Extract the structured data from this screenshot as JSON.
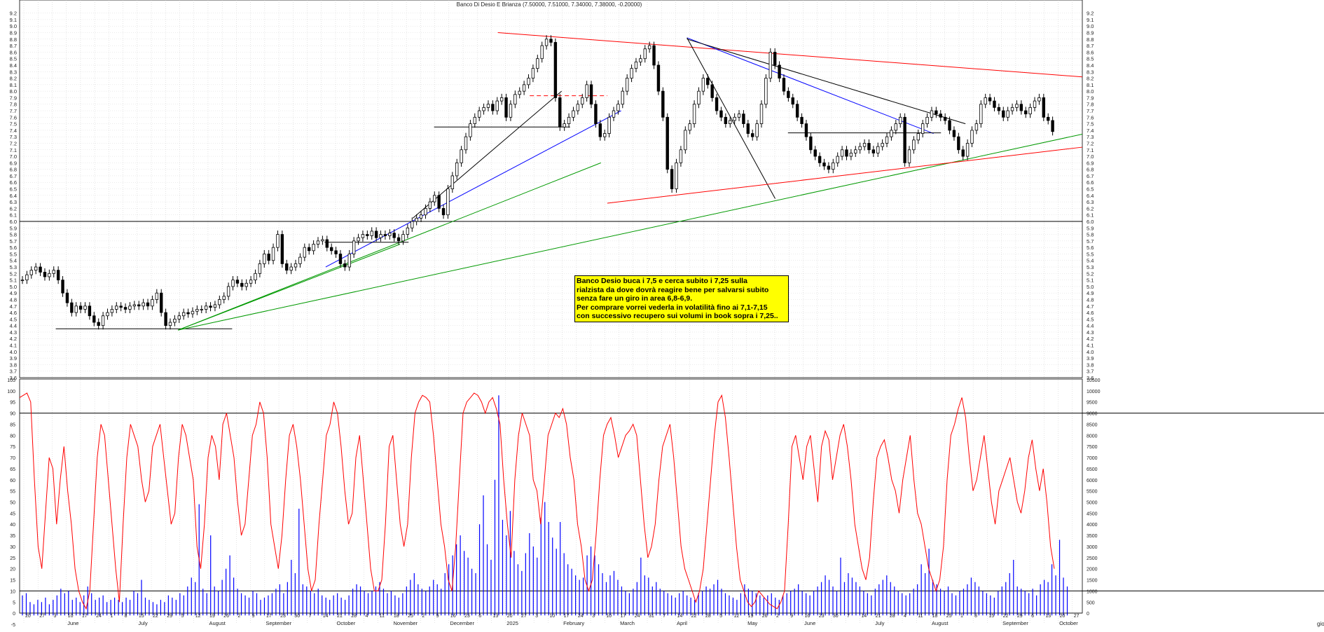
{
  "chart_data": [
    {
      "type": "candlestick",
      "title": "Banco Di Desio E Brianza (7.50000, 7.51000, 7.34000, 7.38000, -0.20000)",
      "y_tick_labels": [
        "3.6",
        "3.7",
        "3.8",
        "3.9",
        "4.0",
        "4.1",
        "4.2",
        "4.3",
        "4.4",
        "4.5",
        "4.6",
        "4.7",
        "4.8",
        "4.9",
        "5.0",
        "5.1",
        "5.2",
        "5.3",
        "5.4",
        "5.5",
        "5.6",
        "5.7",
        "5.8",
        "5.9",
        "6.0",
        "6.1",
        "6.2",
        "6.3",
        "6.4",
        "6.5",
        "6.6",
        "6.7",
        "6.8",
        "6.9",
        "7.0",
        "7.1",
        "7.2",
        "7.3",
        "7.4",
        "7.5",
        "7.6",
        "7.7",
        "7.8",
        "7.9",
        "8.0",
        "8.1",
        "8.2",
        "8.3",
        "8.4",
        "8.5",
        "8.6",
        "8.7",
        "8.8",
        "8.9",
        "9.0",
        "9.1",
        "9.2"
      ],
      "ylim": [
        3.6,
        9.25
      ],
      "grid": true,
      "x_day_labels": [
        "20",
        "27",
        "3",
        "10",
        "17",
        "24",
        "1",
        "8",
        "15",
        "22",
        "29",
        "5",
        "12",
        "19",
        "26",
        "2",
        "9",
        "17",
        "23",
        "30",
        "7",
        "14",
        "21",
        "28",
        "4",
        "11",
        "18",
        "25",
        "2",
        "9",
        "16",
        "23",
        "6",
        "13",
        "20",
        "27",
        "3",
        "10",
        "17",
        "24",
        "3",
        "10",
        "17",
        "24",
        "31",
        "7",
        "14",
        "22",
        "28",
        "5",
        "12",
        "19",
        "26",
        "2",
        "9",
        "16",
        "23",
        "30",
        "7",
        "14",
        "21",
        "28",
        "4",
        "11",
        "18",
        "25",
        "1",
        "8",
        "15",
        "22",
        "29",
        "6",
        "13",
        "20",
        "27"
      ],
      "x_month_labels": [
        "June",
        "July",
        "August",
        "September",
        "October",
        "November",
        "December",
        "2025",
        "February",
        "March",
        "April",
        "May",
        "June",
        "July",
        "August",
        "September",
        "October"
      ],
      "trendlines": [
        {
          "color": "#000000",
          "points": [
            [
              0,
              6.0
            ],
            [
              1,
              6.0
            ]
          ]
        },
        {
          "color": "#000000",
          "points": [
            [
              0.034,
              4.35
            ],
            [
              0.2,
              4.35
            ]
          ]
        },
        {
          "color": "#009900",
          "points": [
            [
              0.149,
              4.33
            ],
            [
              0.358,
              5.65
            ]
          ]
        },
        {
          "color": "#009900",
          "points": [
            [
              0.149,
              4.33
            ],
            [
              0.547,
              6.9
            ]
          ]
        },
        {
          "color": "#009900",
          "points": [
            [
              0.149,
              4.33
            ],
            [
              1.0,
              7.34
            ]
          ]
        },
        {
          "color": "#0000ff",
          "points": [
            [
              0.288,
              5.3
            ],
            [
              0.566,
              7.7
            ]
          ]
        },
        {
          "color": "#000000",
          "points": [
            [
              0.37,
              6.05
            ],
            [
              0.51,
              8.0
            ]
          ]
        },
        {
          "color": "#ff0000",
          "points": [
            [
              0.45,
              8.9
            ],
            [
              1.0,
              8.22
            ]
          ]
        },
        {
          "color": "#0000ff",
          "points": [
            [
              0.628,
              8.82
            ],
            [
              0.86,
              7.35
            ]
          ]
        },
        {
          "color": "#000000",
          "points": [
            [
              0.628,
              8.82
            ],
            [
              0.711,
              6.35
            ]
          ]
        },
        {
          "color": "#000000",
          "points": [
            [
              0.628,
              8.8
            ],
            [
              0.89,
              7.5
            ]
          ]
        },
        {
          "color": "#ff0000",
          "points": [
            [
              0.553,
              6.28
            ],
            [
              1.0,
              7.14
            ]
          ]
        },
        {
          "color": "#000000",
          "points": [
            [
              0.39,
              7.45
            ],
            [
              0.518,
              7.45
            ]
          ]
        },
        {
          "color": "#ff0000",
          "dash": true,
          "points": [
            [
              0.48,
              7.93
            ],
            [
              0.553,
              7.93
            ]
          ]
        },
        {
          "color": "#000000",
          "points": [
            [
              0.287,
              5.68
            ],
            [
              0.366,
              5.68
            ]
          ]
        },
        {
          "color": "#000000",
          "points": [
            [
              0.723,
              7.36
            ],
            [
              0.867,
              7.36
            ]
          ]
        }
      ],
      "price_series": {
        "description": "daily closing prices June 2024 - October 2025",
        "close": [
          5.1,
          5.18,
          5.25,
          5.3,
          5.22,
          5.15,
          5.2,
          5.25,
          5.1,
          4.9,
          4.75,
          4.6,
          4.7,
          4.65,
          4.7,
          4.55,
          4.45,
          4.4,
          4.55,
          4.6,
          4.65,
          4.7,
          4.68,
          4.65,
          4.7,
          4.72,
          4.7,
          4.75,
          4.7,
          4.8,
          4.9,
          4.6,
          4.4,
          4.45,
          4.5,
          4.55,
          4.6,
          4.58,
          4.62,
          4.65,
          4.65,
          4.7,
          4.68,
          4.72,
          4.8,
          4.85,
          5.0,
          5.1,
          5.05,
          5.0,
          5.05,
          5.1,
          5.2,
          5.35,
          5.5,
          5.4,
          5.6,
          5.8,
          5.35,
          5.25,
          5.3,
          5.35,
          5.45,
          5.6,
          5.55,
          5.65,
          5.7,
          5.72,
          5.6,
          5.55,
          5.5,
          5.35,
          5.3,
          5.5,
          5.7,
          5.75,
          5.8,
          5.78,
          5.85,
          5.75,
          5.8,
          5.78,
          5.82,
          5.75,
          5.7,
          5.8,
          5.9,
          6.0,
          6.05,
          6.1,
          6.2,
          6.3,
          6.4,
          6.2,
          6.1,
          6.5,
          6.7,
          6.9,
          7.1,
          7.3,
          7.5,
          7.6,
          7.7,
          7.75,
          7.8,
          7.7,
          7.85,
          7.9,
          7.6,
          7.8,
          7.95,
          8.0,
          8.1,
          8.2,
          8.35,
          8.5,
          8.7,
          8.8,
          8.75,
          7.9,
          7.45,
          7.5,
          7.6,
          7.7,
          7.8,
          7.9,
          8.1,
          7.8,
          7.5,
          7.3,
          7.35,
          7.6,
          7.7,
          7.8,
          8.0,
          8.2,
          8.35,
          8.45,
          8.5,
          8.65,
          8.7,
          8.4,
          8.0,
          7.6,
          6.8,
          6.5,
          6.9,
          7.1,
          7.4,
          7.5,
          7.8,
          8.0,
          8.2,
          8.1,
          7.9,
          7.7,
          7.6,
          7.5,
          7.55,
          7.6,
          7.65,
          7.5,
          7.35,
          7.3,
          7.5,
          7.8,
          8.2,
          8.6,
          8.4,
          8.2,
          8.0,
          7.9,
          7.8,
          7.6,
          7.5,
          7.3,
          7.1,
          7.0,
          6.9,
          6.85,
          6.8,
          6.9,
          7.0,
          7.1,
          7.0,
          7.05,
          7.1,
          7.15,
          7.2,
          7.1,
          7.05,
          7.15,
          7.2,
          7.3,
          7.4,
          7.5,
          7.6,
          6.9,
          7.1,
          7.25,
          7.35,
          7.5,
          7.6,
          7.7,
          7.65,
          7.6,
          7.55,
          7.4,
          7.3,
          7.1,
          7.0,
          7.2,
          7.4,
          7.5,
          7.8,
          7.9,
          7.85,
          7.75,
          7.7,
          7.6,
          7.7,
          7.75,
          7.8,
          7.7,
          7.65,
          7.75,
          7.85,
          7.9,
          7.6,
          7.55,
          7.38
        ]
      }
    },
    {
      "type": "line+bar",
      "y_tick_labels_left": [
        "-5",
        "0",
        "5",
        "10",
        "15",
        "20",
        "25",
        "30",
        "35",
        "40",
        "45",
        "50",
        "55",
        "60",
        "65",
        "70",
        "75",
        "80",
        "85",
        "90",
        "95",
        "100",
        "105"
      ],
      "y_tick_labels_right": [
        "0",
        "500",
        "1000",
        "1500",
        "2000",
        "2500",
        "3000",
        "3500",
        "4000",
        "4500",
        "5000",
        "5500",
        "6000",
        "6500",
        "7000",
        "7500",
        "8000",
        "8500",
        "9000",
        "9500",
        "10000",
        "10500"
      ],
      "ylim": [
        -5,
        105
      ],
      "hlines": [
        10,
        90
      ],
      "oscillator": {
        "color": "#ff0000",
        "values": [
          97,
          98,
          99,
          95,
          60,
          30,
          20,
          45,
          70,
          65,
          40,
          60,
          75,
          55,
          40,
          20,
          10,
          5,
          2,
          10,
          40,
          70,
          85,
          80,
          60,
          40,
          20,
          5,
          40,
          70,
          85,
          80,
          75,
          60,
          50,
          55,
          75,
          80,
          85,
          70,
          55,
          40,
          45,
          70,
          85,
          80,
          70,
          60,
          30,
          20,
          40,
          70,
          80,
          75,
          60,
          85,
          90,
          80,
          70,
          50,
          35,
          40,
          60,
          80,
          85,
          95,
          90,
          70,
          40,
          30,
          20,
          35,
          60,
          80,
          85,
          75,
          60,
          40,
          20,
          10,
          15,
          40,
          60,
          80,
          85,
          95,
          90,
          75,
          55,
          40,
          45,
          70,
          80,
          60,
          40,
          20,
          10,
          10,
          15,
          40,
          75,
          80,
          60,
          40,
          30,
          40,
          70,
          90,
          95,
          98,
          97,
          95,
          80,
          60,
          40,
          30,
          15,
          10,
          30,
          60,
          90,
          95,
          97,
          99,
          98,
          95,
          90,
          95,
          97,
          92,
          85,
          60,
          40,
          25,
          60,
          80,
          90,
          85,
          80,
          60,
          55,
          40,
          60,
          80,
          85,
          90,
          88,
          92,
          85,
          70,
          60,
          40,
          30,
          15,
          10,
          15,
          35,
          60,
          80,
          85,
          88,
          80,
          70,
          75,
          80,
          82,
          85,
          80,
          60,
          40,
          25,
          30,
          40,
          60,
          75,
          80,
          85,
          70,
          50,
          30,
          20,
          15,
          10,
          5,
          10,
          20,
          40,
          60,
          80,
          95,
          98,
          88,
          70,
          50,
          30,
          15,
          10,
          5,
          3,
          5,
          10,
          8,
          6,
          4,
          3,
          2,
          5,
          10,
          40,
          75,
          80,
          70,
          60,
          75,
          80,
          65,
          50,
          75,
          82,
          78,
          60,
          70,
          80,
          85,
          75,
          60,
          40,
          30,
          20,
          15,
          25,
          50,
          70,
          75,
          78,
          70,
          60,
          55,
          45,
          60,
          70,
          80,
          60,
          45,
          40,
          30,
          20,
          15,
          10,
          15,
          30,
          60,
          80,
          85,
          92,
          97,
          88,
          70,
          55,
          60,
          70,
          80,
          65,
          50,
          40,
          55,
          60,
          65,
          70,
          60,
          50,
          45,
          55,
          70,
          78,
          65,
          55,
          65,
          50,
          30,
          20
        ]
      },
      "volume": {
        "color": "#0000ff",
        "values": [
          800,
          900,
          500,
          400,
          600,
          500,
          700,
          400,
          600,
          800,
          1100,
          900,
          1000,
          600,
          700,
          500,
          800,
          1200,
          900,
          600,
          700,
          800,
          500,
          600,
          700,
          600,
          500,
          700,
          600,
          1000,
          900,
          1500,
          700,
          600,
          500,
          400,
          600,
          500,
          800,
          700,
          600,
          900,
          800,
          1200,
          1600,
          1400,
          4900,
          1100,
          900,
          3500,
          1200,
          1000,
          1500,
          2000,
          2600,
          1600,
          1100,
          900,
          800,
          700,
          1000,
          900,
          600,
          700,
          800,
          900,
          1100,
          1300,
          900,
          1400,
          2400,
          1800,
          4700,
          1300,
          1200,
          1000,
          900,
          1100,
          800,
          700,
          600,
          800,
          900,
          700,
          600,
          800,
          1100,
          1300,
          1200,
          1000,
          900,
          1000,
          1200,
          1400,
          1100,
          900,
          1000,
          800,
          700,
          900,
          1200,
          1500,
          1800,
          1300,
          1100,
          1000,
          1200,
          1500,
          1300,
          1100,
          1800,
          2200,
          2600,
          3100,
          3500,
          2800,
          2500,
          2000,
          1800,
          4000,
          5300,
          3100,
          2400,
          6000,
          9800,
          4200,
          3500,
          4600,
          2800,
          2200,
          1900,
          2700,
          3600,
          3000,
          2500,
          4300,
          5000,
          4100,
          3400,
          2900,
          4100,
          2700,
          2200,
          2000,
          1700,
          1500,
          1600,
          2600,
          3000,
          2600,
          2200,
          1800,
          1400,
          1700,
          1900,
          1500,
          1200,
          1000,
          900,
          1100,
          1400,
          2500,
          1700,
          1600,
          1200,
          1400,
          1100,
          1000,
          900,
          800,
          700,
          900,
          1000,
          800,
          700,
          600,
          900,
          1000,
          1200,
          1100,
          1300,
          1500,
          1100,
          900,
          800,
          700,
          600,
          900,
          1300,
          1100,
          1000,
          900,
          800,
          700,
          800,
          900,
          700,
          600,
          800,
          900,
          1000,
          1100,
          1300,
          1000,
          900,
          800,
          1000,
          1200,
          1400,
          1700,
          1500,
          1200,
          1000,
          2500,
          1400,
          1800,
          1600,
          1400,
          1200,
          1000,
          900,
          800,
          1100,
          1300,
          1500,
          1700,
          1400,
          1200,
          1000,
          900,
          800,
          900,
          1100,
          1300,
          2200,
          1800,
          2900,
          1500,
          1300,
          1100,
          1000,
          1200,
          900,
          800,
          1000,
          1100,
          1300,
          1600,
          1400,
          1200,
          1000,
          900,
          800,
          700,
          1000,
          1200,
          1400,
          1800,
          2400,
          1200,
          1100,
          1000,
          900,
          1100,
          800,
          1300,
          1500,
          1400,
          2200,
          1700,
          3300,
          1600,
          1200
        ]
      }
    }
  ],
  "annotation": {
    "lines": [
      "Banco Desio buca i 7,5 e cerca subito i 7,25 sulla",
      "rialzista da dove dovrà reagire bene per salvarsi subito",
      "senza fare un giro in area 6,8-6,9.",
      "Per comprare  vorrei vederla in volatilità fino ai 7,1-7,15",
      "con successivo recupero sui volumi in book sopra i 7,25.."
    ]
  },
  "footer_label": "giorni",
  "colors": {
    "candle": "#000000",
    "grid": "#aaaaaa",
    "oscillator": "#ff0000",
    "volume": "#0000ff",
    "note_bg": "#ffff00"
  }
}
